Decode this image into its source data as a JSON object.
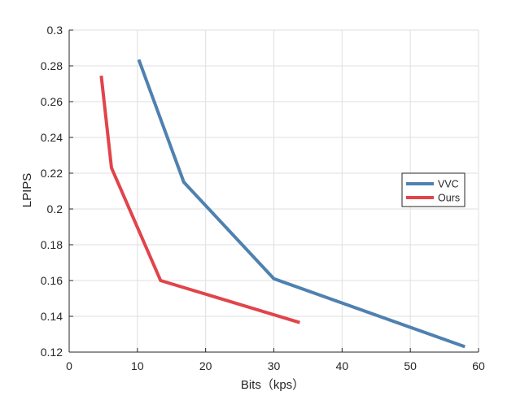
{
  "chart_data": {
    "type": "line",
    "title": "",
    "xlabel": "Bits（kps）",
    "ylabel": "LPIPS",
    "xlim": [
      0,
      60
    ],
    "ylim": [
      0.12,
      0.3
    ],
    "xticks": [
      0,
      10,
      20,
      30,
      40,
      50,
      60
    ],
    "xtick_labels": [
      "0",
      "10",
      "20",
      "30",
      "40",
      "50",
      "60"
    ],
    "yticks": [
      0.12,
      0.14,
      0.16,
      0.18,
      0.2,
      0.22,
      0.24,
      0.26,
      0.28,
      0.3
    ],
    "ytick_labels": [
      "0.12",
      "0.14",
      "0.16",
      "0.18",
      "0.2",
      "0.22",
      "0.24",
      "0.26",
      "0.28",
      "0.3"
    ],
    "grid": true,
    "legend_position": "right",
    "series": [
      {
        "name": "VVC",
        "color": "#4f81b0",
        "x": [
          10.2,
          16.8,
          30.0,
          58.0
        ],
        "y": [
          0.2835,
          0.215,
          0.161,
          0.123
        ]
      },
      {
        "name": "Ours",
        "color": "#e1444a",
        "x": [
          4.7,
          6.2,
          13.4,
          33.8
        ],
        "y": [
          0.2745,
          0.223,
          0.16,
          0.1365
        ]
      }
    ]
  }
}
